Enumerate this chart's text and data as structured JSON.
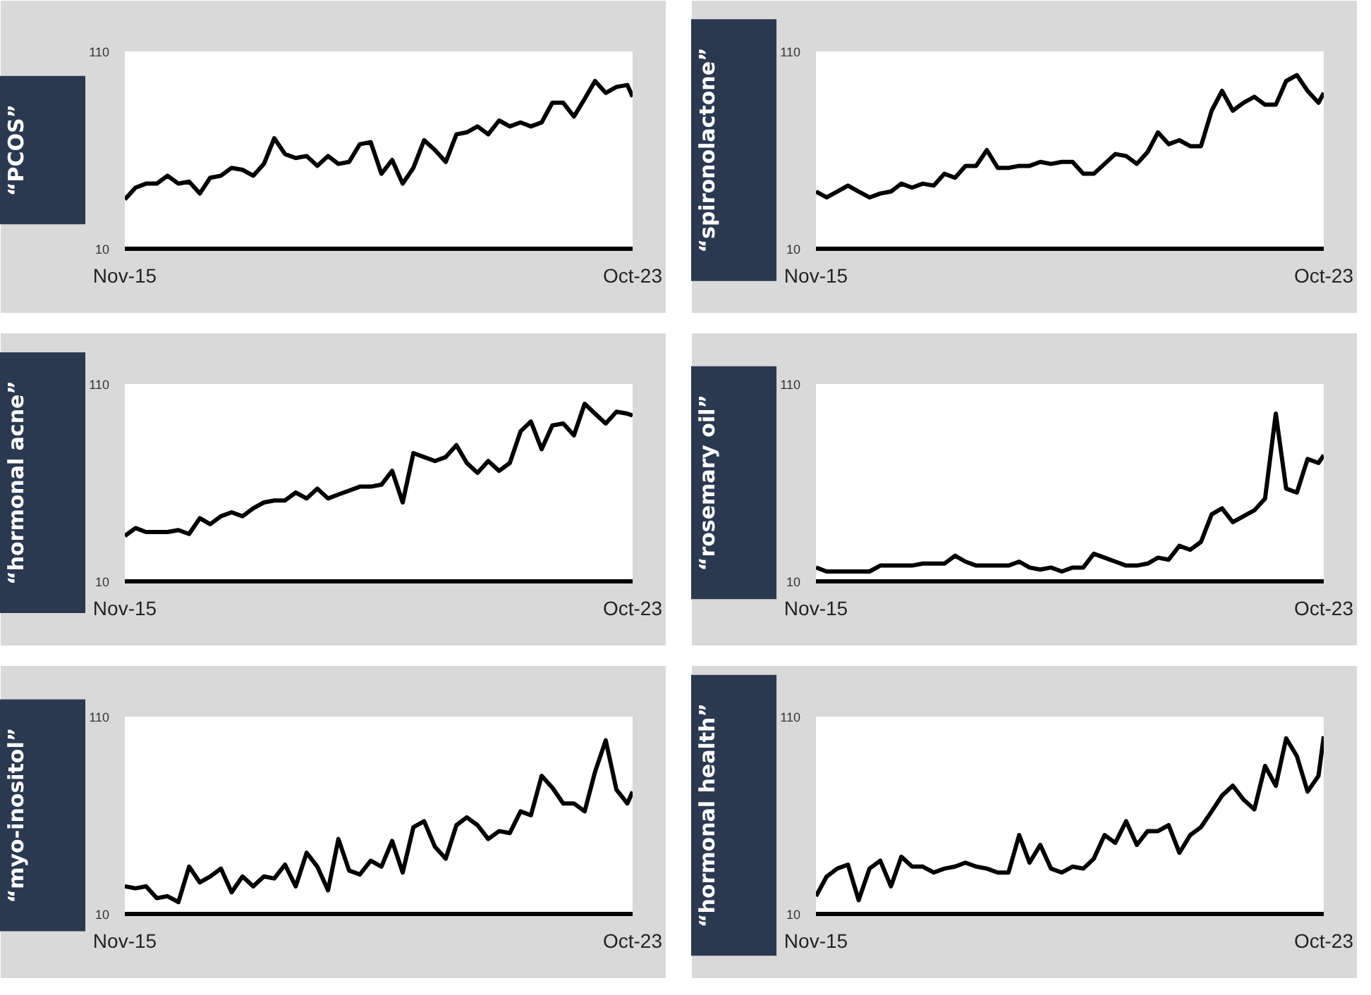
{
  "chart_data": [
    {
      "type": "line",
      "title": "“PCOS”",
      "color": "#000000",
      "xlim": [
        "2015-11",
        "2023-10"
      ],
      "ylim": [
        10,
        110
      ],
      "yticks": [
        10,
        110
      ],
      "xticks": [
        {
          "value": "2015-11",
          "label": "Nov-15"
        },
        {
          "value": "2023-10",
          "label": "Oct-23"
        }
      ],
      "x": [
        "2015-11",
        "2016-01",
        "2016-03",
        "2016-05",
        "2016-07",
        "2016-09",
        "2016-11",
        "2017-01",
        "2017-03",
        "2017-05",
        "2017-07",
        "2017-09",
        "2017-11",
        "2018-01",
        "2018-03",
        "2018-05",
        "2018-07",
        "2018-09",
        "2018-11",
        "2019-01",
        "2019-03",
        "2019-05",
        "2019-07",
        "2019-09",
        "2019-11",
        "2020-01",
        "2020-03",
        "2020-05",
        "2020-07",
        "2020-09",
        "2020-11",
        "2021-01",
        "2021-03",
        "2021-05",
        "2021-07",
        "2021-09",
        "2021-11",
        "2022-01",
        "2022-03",
        "2022-05",
        "2022-07",
        "2022-09",
        "2022-11",
        "2023-01",
        "2023-03",
        "2023-05",
        "2023-07",
        "2023-09",
        "2023-10"
      ],
      "values": [
        35,
        41,
        43,
        43,
        47,
        43,
        44,
        38,
        46,
        47,
        51,
        50,
        47,
        53,
        66,
        58,
        56,
        57,
        52,
        57,
        53,
        54,
        63,
        64,
        48,
        55,
        43,
        51,
        65,
        60,
        54,
        68,
        69,
        72,
        68,
        75,
        72,
        74,
        72,
        74,
        84,
        84,
        77,
        86,
        95,
        89,
        92,
        93,
        87
      ]
    },
    {
      "type": "line",
      "title": "“spironolactone”",
      "color": "#000000",
      "xlim": [
        "2015-11",
        "2023-10"
      ],
      "ylim": [
        10,
        110
      ],
      "yticks": [
        10,
        110
      ],
      "xticks": [
        {
          "value": "2015-11",
          "label": "Nov-15"
        },
        {
          "value": "2023-10",
          "label": "Oct-23"
        }
      ],
      "x": [
        "2015-11",
        "2016-01",
        "2016-03",
        "2016-05",
        "2016-07",
        "2016-09",
        "2016-11",
        "2017-01",
        "2017-03",
        "2017-05",
        "2017-07",
        "2017-09",
        "2017-11",
        "2018-01",
        "2018-03",
        "2018-05",
        "2018-07",
        "2018-09",
        "2018-11",
        "2019-01",
        "2019-03",
        "2019-05",
        "2019-07",
        "2019-09",
        "2019-11",
        "2020-01",
        "2020-03",
        "2020-05",
        "2020-07",
        "2020-09",
        "2020-11",
        "2021-01",
        "2021-03",
        "2021-05",
        "2021-07",
        "2021-09",
        "2021-11",
        "2022-01",
        "2022-03",
        "2022-05",
        "2022-07",
        "2022-09",
        "2022-11",
        "2023-01",
        "2023-03",
        "2023-05",
        "2023-07",
        "2023-09",
        "2023-10"
      ],
      "values": [
        39,
        36,
        39,
        42,
        39,
        36,
        38,
        39,
        43,
        41,
        43,
        42,
        48,
        46,
        52,
        52,
        60,
        51,
        51,
        52,
        52,
        54,
        53,
        54,
        54,
        48,
        48,
        53,
        58,
        57,
        53,
        59,
        69,
        63,
        65,
        62,
        62,
        80,
        90,
        80,
        84,
        87,
        83,
        83,
        95,
        98,
        90,
        84,
        89
      ]
    },
    {
      "type": "line",
      "title": "“hormonal acne”",
      "color": "#000000",
      "xlim": [
        "2015-11",
        "2023-10"
      ],
      "ylim": [
        10,
        110
      ],
      "yticks": [
        10,
        110
      ],
      "xticks": [
        {
          "value": "2015-11",
          "label": "Nov-15"
        },
        {
          "value": "2023-10",
          "label": "Oct-23"
        }
      ],
      "x": [
        "2015-11",
        "2016-01",
        "2016-03",
        "2016-05",
        "2016-07",
        "2016-09",
        "2016-11",
        "2017-01",
        "2017-03",
        "2017-05",
        "2017-07",
        "2017-09",
        "2017-11",
        "2018-01",
        "2018-03",
        "2018-05",
        "2018-07",
        "2018-09",
        "2018-11",
        "2019-01",
        "2019-03",
        "2019-05",
        "2019-07",
        "2019-09",
        "2019-11",
        "2020-01",
        "2020-03",
        "2020-05",
        "2020-07",
        "2020-09",
        "2020-11",
        "2021-01",
        "2021-03",
        "2021-05",
        "2021-07",
        "2021-09",
        "2021-11",
        "2022-01",
        "2022-03",
        "2022-05",
        "2022-07",
        "2022-09",
        "2022-11",
        "2023-01",
        "2023-03",
        "2023-05",
        "2023-07",
        "2023-09",
        "2023-10"
      ],
      "values": [
        33,
        37,
        35,
        35,
        35,
        36,
        34,
        42,
        39,
        43,
        45,
        43,
        47,
        50,
        51,
        51,
        55,
        52,
        57,
        52,
        54,
        56,
        58,
        58,
        59,
        66,
        50,
        75,
        73,
        71,
        73,
        79,
        70,
        65,
        71,
        66,
        70,
        86,
        91,
        77,
        89,
        90,
        84,
        100,
        95,
        90,
        96,
        95,
        94
      ]
    },
    {
      "type": "line",
      "title": "“rosemary oil”",
      "color": "#000000",
      "xlim": [
        "2015-11",
        "2023-10"
      ],
      "ylim": [
        10,
        110
      ],
      "yticks": [
        10,
        110
      ],
      "xticks": [
        {
          "value": "2015-11",
          "label": "Nov-15"
        },
        {
          "value": "2023-10",
          "label": "Oct-23"
        }
      ],
      "x": [
        "2015-11",
        "2016-01",
        "2016-03",
        "2016-05",
        "2016-07",
        "2016-09",
        "2016-11",
        "2017-01",
        "2017-03",
        "2017-05",
        "2017-07",
        "2017-09",
        "2017-11",
        "2018-01",
        "2018-03",
        "2018-05",
        "2018-07",
        "2018-09",
        "2018-11",
        "2019-01",
        "2019-03",
        "2019-05",
        "2019-07",
        "2019-09",
        "2019-11",
        "2020-01",
        "2020-03",
        "2020-05",
        "2020-07",
        "2020-09",
        "2020-11",
        "2021-01",
        "2021-03",
        "2021-05",
        "2021-07",
        "2021-09",
        "2021-11",
        "2022-01",
        "2022-03",
        "2022-05",
        "2022-07",
        "2022-09",
        "2022-11",
        "2023-01",
        "2023-03",
        "2023-05",
        "2023-07",
        "2023-09",
        "2023-10"
      ],
      "values": [
        17,
        15,
        15,
        15,
        15,
        15,
        18,
        18,
        18,
        18,
        19,
        19,
        19,
        23,
        20,
        18,
        18,
        18,
        18,
        20,
        17,
        16,
        17,
        15,
        17,
        17,
        24,
        22,
        20,
        18,
        18,
        19,
        22,
        21,
        28,
        26,
        30,
        44,
        47,
        40,
        43,
        46,
        52,
        95,
        57,
        55,
        72,
        70,
        74
      ]
    },
    {
      "type": "line",
      "title": "“myo-inositol”",
      "color": "#000000",
      "xlim": [
        "2015-11",
        "2023-10"
      ],
      "ylim": [
        10,
        110
      ],
      "yticks": [
        10,
        110
      ],
      "xticks": [
        {
          "value": "2015-11",
          "label": "Nov-15"
        },
        {
          "value": "2023-10",
          "label": "Oct-23"
        }
      ],
      "x": [
        "2015-11",
        "2016-01",
        "2016-03",
        "2016-05",
        "2016-07",
        "2016-09",
        "2016-11",
        "2017-01",
        "2017-03",
        "2017-05",
        "2017-07",
        "2017-09",
        "2017-11",
        "2018-01",
        "2018-03",
        "2018-05",
        "2018-07",
        "2018-09",
        "2018-11",
        "2019-01",
        "2019-03",
        "2019-05",
        "2019-07",
        "2019-09",
        "2019-11",
        "2020-01",
        "2020-03",
        "2020-05",
        "2020-07",
        "2020-09",
        "2020-11",
        "2021-01",
        "2021-03",
        "2021-05",
        "2021-07",
        "2021-09",
        "2021-11",
        "2022-01",
        "2022-03",
        "2022-05",
        "2022-07",
        "2022-09",
        "2022-11",
        "2023-01",
        "2023-03",
        "2023-05",
        "2023-07",
        "2023-09",
        "2023-10"
      ],
      "values": [
        24,
        23,
        24,
        18,
        19,
        16,
        34,
        26,
        29,
        33,
        21,
        29,
        24,
        29,
        28,
        35,
        24,
        41,
        34,
        22,
        48,
        32,
        30,
        37,
        34,
        47,
        31,
        54,
        57,
        44,
        38,
        55,
        59,
        55,
        48,
        52,
        51,
        62,
        60,
        80,
        74,
        66,
        66,
        62,
        82,
        98,
        73,
        66,
        72
      ]
    },
    {
      "type": "line",
      "title": "“hormonal health”",
      "color": "#000000",
      "xlim": [
        "2015-11",
        "2023-10"
      ],
      "ylim": [
        10,
        110
      ],
      "yticks": [
        10,
        110
      ],
      "xticks": [
        {
          "value": "2015-11",
          "label": "Nov-15"
        },
        {
          "value": "2023-10",
          "label": "Oct-23"
        }
      ],
      "x": [
        "2015-11",
        "2016-01",
        "2016-03",
        "2016-05",
        "2016-07",
        "2016-09",
        "2016-11",
        "2017-01",
        "2017-03",
        "2017-05",
        "2017-07",
        "2017-09",
        "2017-11",
        "2018-01",
        "2018-03",
        "2018-05",
        "2018-07",
        "2018-09",
        "2018-11",
        "2019-01",
        "2019-03",
        "2019-05",
        "2019-07",
        "2019-09",
        "2019-11",
        "2020-01",
        "2020-03",
        "2020-05",
        "2020-07",
        "2020-09",
        "2020-11",
        "2021-01",
        "2021-03",
        "2021-05",
        "2021-07",
        "2021-09",
        "2021-11",
        "2022-01",
        "2022-03",
        "2022-05",
        "2022-07",
        "2022-09",
        "2022-11",
        "2023-01",
        "2023-03",
        "2023-05",
        "2023-07",
        "2023-09",
        "2023-10"
      ],
      "values": [
        19,
        29,
        33,
        35,
        17,
        33,
        37,
        24,
        39,
        34,
        34,
        31,
        33,
        34,
        36,
        34,
        33,
        31,
        31,
        50,
        36,
        45,
        33,
        31,
        34,
        33,
        38,
        50,
        46,
        57,
        45,
        52,
        52,
        55,
        41,
        50,
        54,
        62,
        70,
        75,
        68,
        63,
        85,
        75,
        99,
        90,
        72,
        80,
        100
      ]
    }
  ]
}
